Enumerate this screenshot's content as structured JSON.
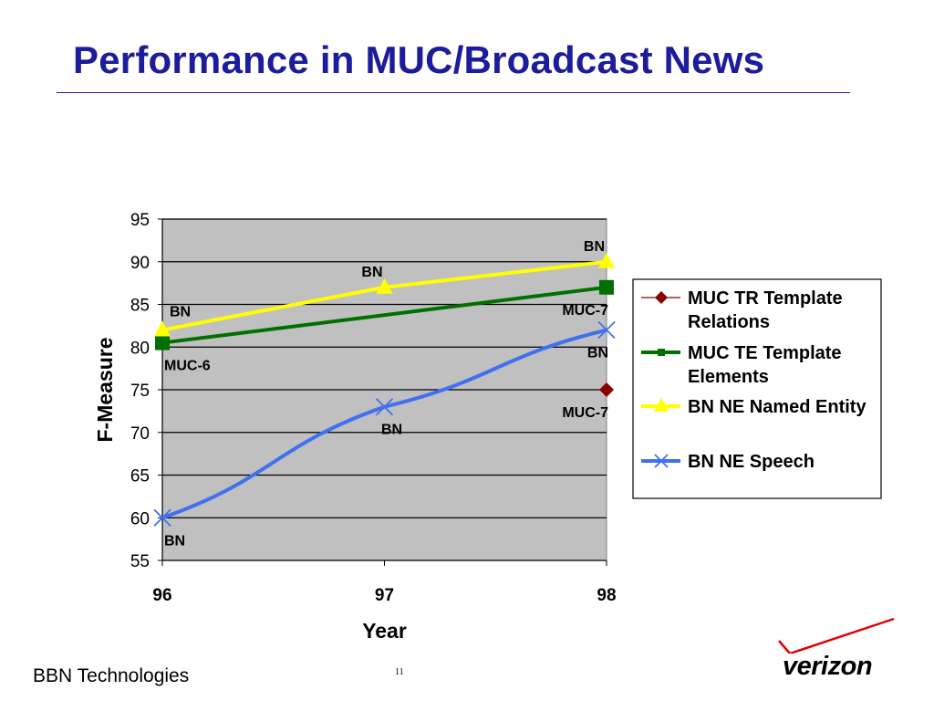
{
  "slide": {
    "title": "Performance in MUC/Broadcast News",
    "footer": "BBN Technologies",
    "page_number": "11",
    "logo_text": "verizon",
    "title_color": "#1c1c9c"
  },
  "chart_data": {
    "type": "line",
    "xlabel": "Year",
    "ylabel": "F-Measure",
    "x": [
      96,
      97,
      98
    ],
    "xticks": [
      "96",
      "97",
      "98"
    ],
    "ylim": [
      55,
      95
    ],
    "yticks": [
      55,
      60,
      65,
      70,
      75,
      80,
      85,
      90,
      95
    ],
    "grid": true,
    "plot_background": "#c0c0c0",
    "legend_position": "right",
    "series": [
      {
        "name": "MUC TR Template Relations",
        "points": [
          [
            98,
            75
          ]
        ],
        "color": "#8b0000",
        "marker": "diamond",
        "line": false
      },
      {
        "name": "MUC TE Template Elements",
        "points": [
          [
            96,
            80.5
          ],
          [
            98,
            87
          ]
        ],
        "color": "#007000",
        "marker": "square",
        "line": true
      },
      {
        "name": "BN NE Named Entity",
        "points": [
          [
            96,
            82
          ],
          [
            97,
            87
          ],
          [
            98,
            90
          ]
        ],
        "color": "#ffff00",
        "marker": "triangle",
        "line": true
      },
      {
        "name": "BN NE Speech",
        "points": [
          [
            96,
            60
          ],
          [
            97,
            73
          ],
          [
            98,
            82
          ]
        ],
        "color": "#4070f0",
        "marker": "x",
        "line": true
      }
    ],
    "annotations": [
      {
        "text": "BN",
        "x": 96,
        "y": 82,
        "pos": "above-right"
      },
      {
        "text": "MUC-6",
        "x": 96,
        "y": 80.5,
        "pos": "below-right"
      },
      {
        "text": "BN",
        "x": 96,
        "y": 60,
        "pos": "below-right"
      },
      {
        "text": "BN",
        "x": 97,
        "y": 87,
        "pos": "above-left"
      },
      {
        "text": "BN",
        "x": 97,
        "y": 73,
        "pos": "below"
      },
      {
        "text": "BN",
        "x": 98,
        "y": 90,
        "pos": "above-left"
      },
      {
        "text": "MUC-7",
        "x": 98,
        "y": 87,
        "pos": "below-left"
      },
      {
        "text": "BN",
        "x": 98,
        "y": 82,
        "pos": "below-left"
      },
      {
        "text": "MUC-7",
        "x": 98,
        "y": 75,
        "pos": "below-left"
      }
    ]
  }
}
